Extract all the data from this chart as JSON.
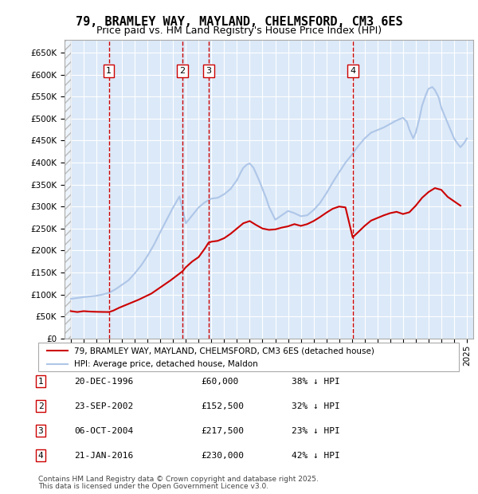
{
  "title": "79, BRAMLEY WAY, MAYLAND, CHELMSFORD, CM3 6ES",
  "subtitle": "Price paid vs. HM Land Registry's House Price Index (HPI)",
  "legend_line1": "79, BRAMLEY WAY, MAYLAND, CHELMSFORD, CM3 6ES (detached house)",
  "legend_line2": "HPI: Average price, detached house, Maldon",
  "footer1": "Contains HM Land Registry data © Crown copyright and database right 2025.",
  "footer2": "This data is licensed under the Open Government Licence v3.0.",
  "hpi_color": "#aec6e8",
  "price_color": "#cc0000",
  "vline_color": "#cc0000",
  "bg_chart": "#dce9f8",
  "bg_outer": "#ffffff",
  "grid_color": "#ffffff",
  "transactions": [
    {
      "num": 1,
      "date_x": 1996.97,
      "price": 60000,
      "label": "20-DEC-1996",
      "amount": "£60,000",
      "hpi_pct": "38% ↓ HPI"
    },
    {
      "num": 2,
      "date_x": 2002.73,
      "price": 152500,
      "label": "23-SEP-2002",
      "amount": "£152,500",
      "hpi_pct": "32% ↓ HPI"
    },
    {
      "num": 3,
      "date_x": 2004.77,
      "price": 217500,
      "label": "06-OCT-2004",
      "amount": "£217,500",
      "hpi_pct": "23% ↓ HPI"
    },
    {
      "num": 4,
      "date_x": 2016.06,
      "price": 230000,
      "label": "21-JAN-2016",
      "amount": "£230,000",
      "hpi_pct": "42% ↓ HPI"
    }
  ],
  "ylim": [
    0,
    680000
  ],
  "xlim": [
    1993.5,
    2025.5
  ],
  "yticks": [
    0,
    50000,
    100000,
    150000,
    200000,
    250000,
    300000,
    350000,
    400000,
    450000,
    500000,
    550000,
    600000,
    650000
  ],
  "hpi_data_x": [
    1994.0,
    1994.5,
    1995.0,
    1995.5,
    1996.0,
    1996.5,
    1997.0,
    1997.5,
    1998.0,
    1998.5,
    1999.0,
    1999.5,
    2000.0,
    2000.5,
    2001.0,
    2001.5,
    2002.0,
    2002.5,
    2003.0,
    2003.5,
    2004.0,
    2004.5,
    2005.0,
    2005.5,
    2006.0,
    2006.5,
    2007.0,
    2007.5,
    2008.0,
    2008.5,
    2009.0,
    2009.5,
    2010.0,
    2010.5,
    2011.0,
    2011.5,
    2012.0,
    2012.5,
    2013.0,
    2013.5,
    2014.0,
    2014.5,
    2015.0,
    2015.5,
    2016.0,
    2016.5,
    2017.0,
    2017.5,
    2018.0,
    2018.5,
    2019.0,
    2019.5,
    2020.0,
    2020.5,
    2021.0,
    2021.5,
    2022.0,
    2022.5,
    2023.0,
    2023.5,
    2024.0,
    2024.5,
    2025.0
  ],
  "hpi_data_y": [
    90000,
    92000,
    94000,
    95000,
    97000,
    100000,
    103000,
    110000,
    120000,
    130000,
    145000,
    163000,
    185000,
    210000,
    240000,
    268000,
    295000,
    320000,
    258000,
    278000,
    297000,
    310000,
    318000,
    320000,
    327000,
    338000,
    356000,
    378000,
    393000,
    370000,
    340000,
    278000,
    303000,
    318000,
    330000,
    327000,
    323000,
    325000,
    342000,
    358000,
    400000,
    430000,
    458000,
    473000,
    390000,
    405000,
    432000,
    448000,
    474000,
    490000,
    500000,
    502000,
    455000,
    465000,
    530000,
    568000,
    575000,
    540000,
    510000,
    430000,
    440000,
    455000,
    468000
  ],
  "price_data_x": [
    1994.5,
    1996.97,
    2002.73,
    2004.77,
    2007.0,
    2008.5,
    2010.0,
    2012.0,
    2014.0,
    2016.06,
    2017.5,
    2019.0,
    2021.0,
    2022.5,
    2023.5,
    2024.5
  ],
  "price_data_y": [
    60000,
    60000,
    152500,
    217500,
    262000,
    258000,
    248000,
    257000,
    287000,
    230000,
    268000,
    285000,
    305000,
    338000,
    322000,
    300000
  ]
}
